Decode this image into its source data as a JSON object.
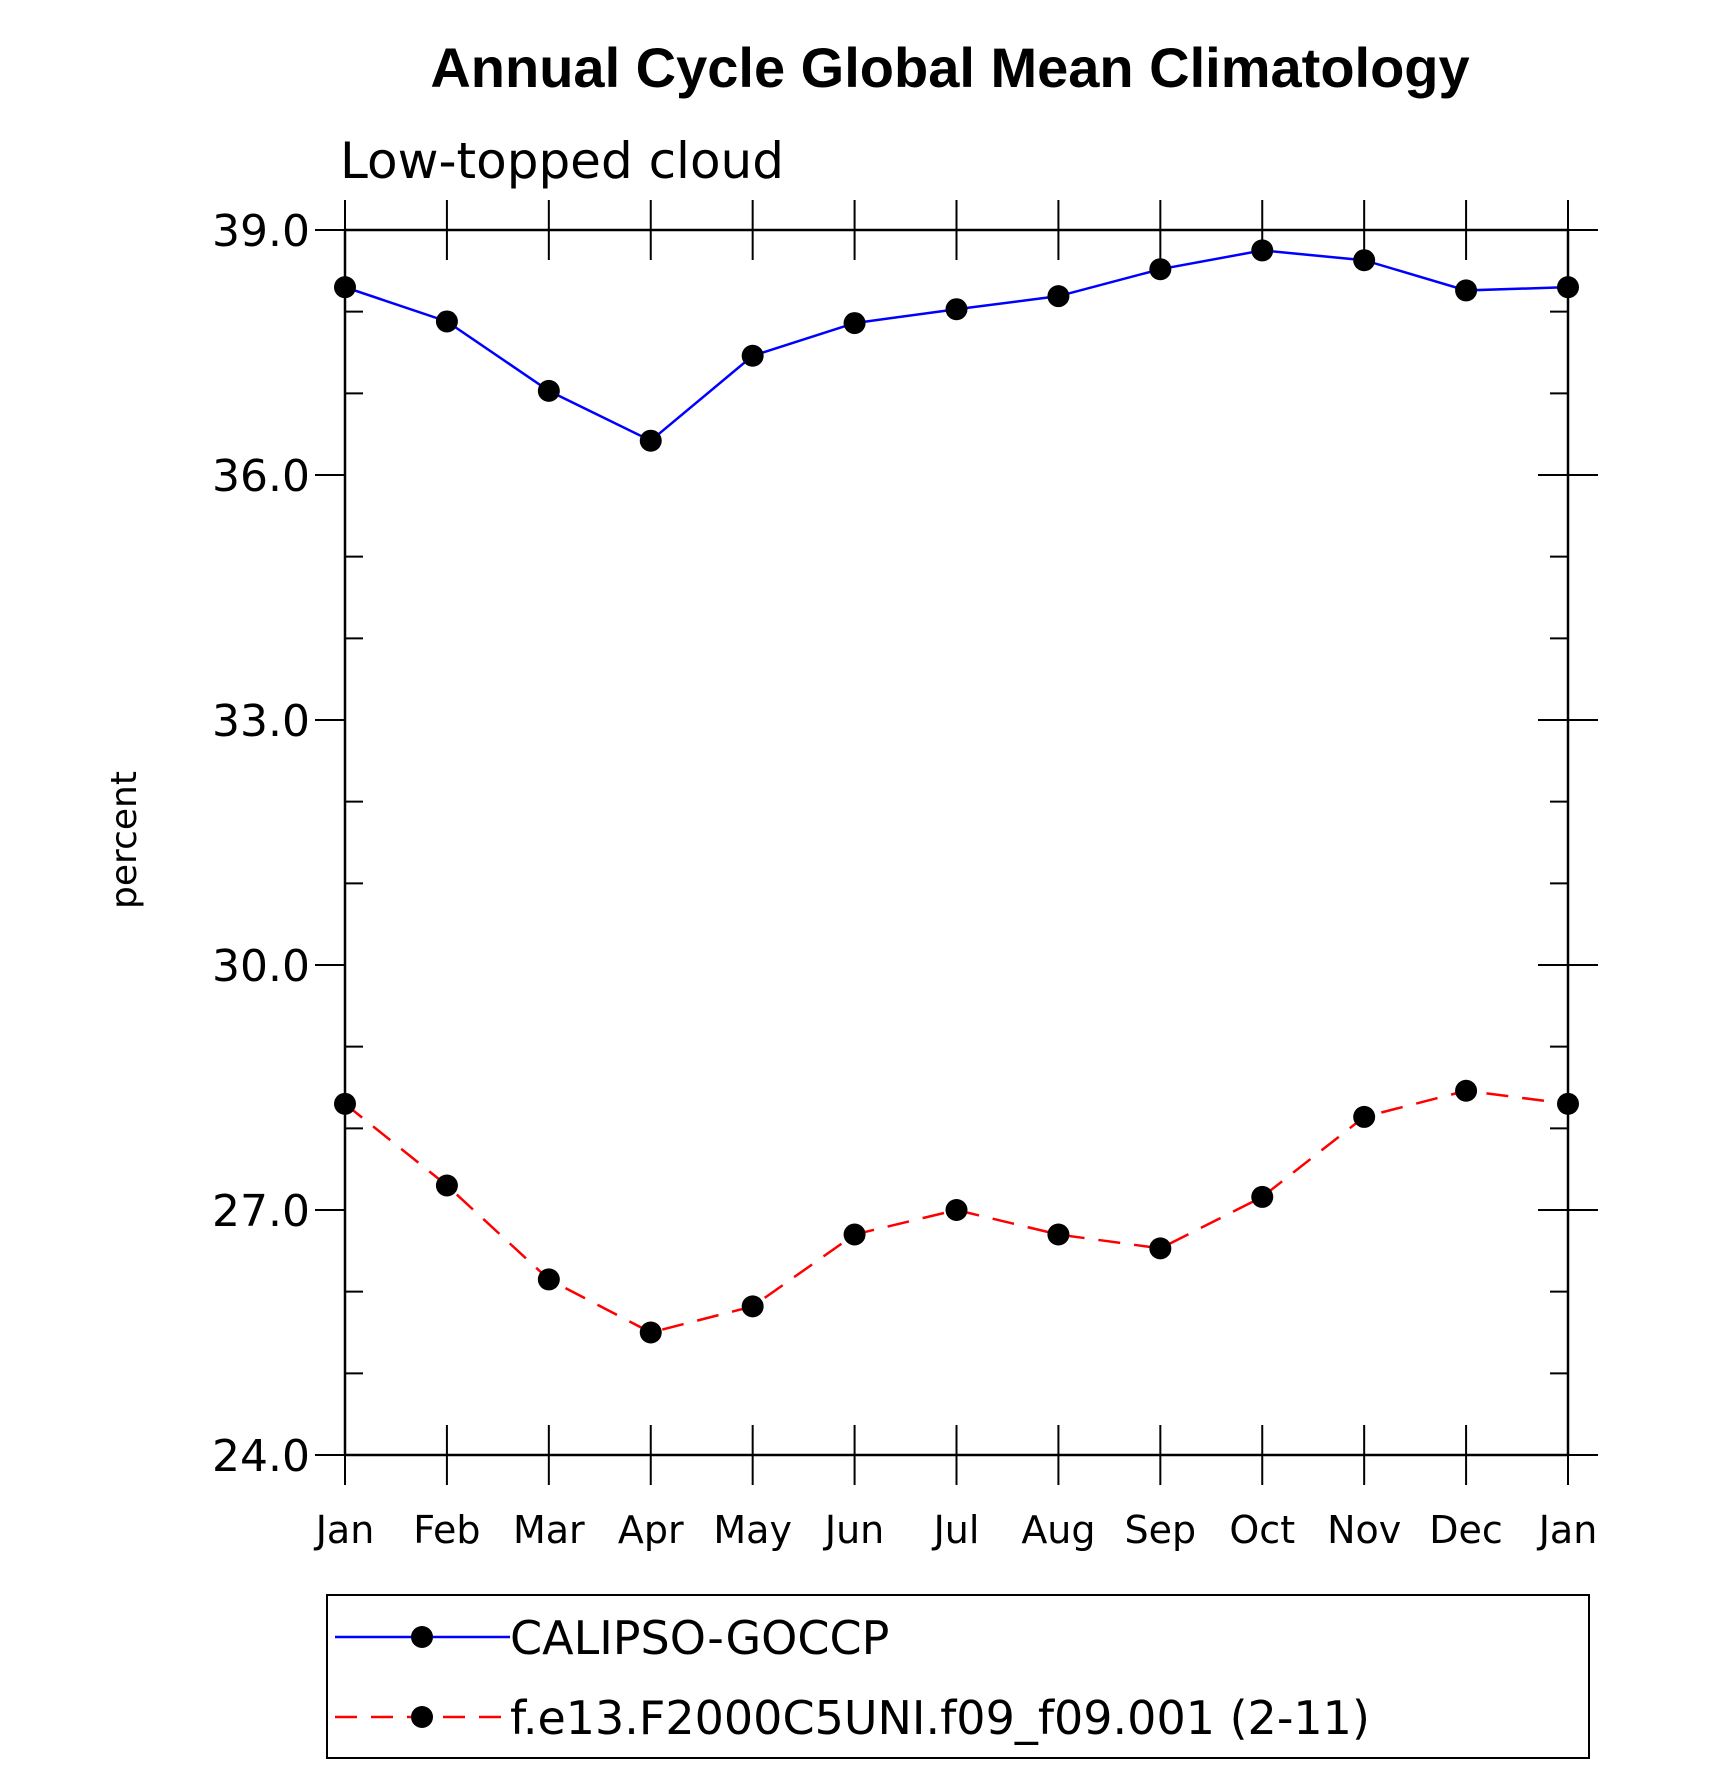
{
  "chart_data": {
    "type": "line",
    "title": "Annual Cycle Global Mean Climatology",
    "subtitle": "Low-topped cloud",
    "xlabel": "",
    "ylabel": "percent",
    "categories": [
      "Jan",
      "Feb",
      "Mar",
      "Apr",
      "May",
      "Jun",
      "Jul",
      "Aug",
      "Sep",
      "Oct",
      "Nov",
      "Dec",
      "Jan"
    ],
    "yticks": [
      "24.0",
      "27.0",
      "30.0",
      "33.0",
      "36.0",
      "39.0"
    ],
    "ylim": [
      24,
      39
    ],
    "grid": false,
    "legend_position": "bottom",
    "series": [
      {
        "name": "CALIPSO-GOCCP",
        "color": "#0000ff",
        "line_style": "solid",
        "marker": "filled-circle",
        "values": [
          38.3,
          37.88,
          37.03,
          36.42,
          37.46,
          37.86,
          38.03,
          38.19,
          38.52,
          38.75,
          38.63,
          38.26,
          38.3
        ]
      },
      {
        "name": "f.e13.F2000C5UNI.f09_f09.001 (2-11)",
        "color": "#ff0000",
        "line_style": "dashed",
        "marker": "filled-circle",
        "values": [
          28.3,
          27.3,
          26.15,
          25.5,
          25.82,
          26.7,
          27.0,
          26.7,
          26.53,
          27.16,
          28.14,
          28.46,
          28.3
        ]
      }
    ]
  }
}
